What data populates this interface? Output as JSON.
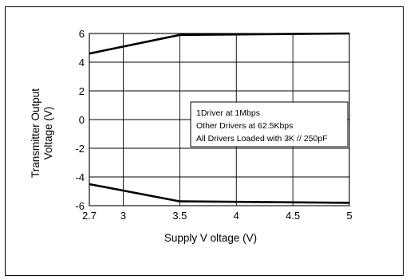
{
  "chart_data": {
    "type": "line",
    "xlabel": "Supply V oltage (V)",
    "ylabel_line1": "Transmitter Output",
    "ylabel_line2": "Voltage (V)",
    "xlim": [
      2.7,
      5.0
    ],
    "ylim": [
      -6,
      6
    ],
    "x_ticks": [
      "2.7",
      "3",
      "3.5",
      "4",
      "4.5",
      "5"
    ],
    "x_tick_values": [
      2.7,
      3.0,
      3.5,
      4.0,
      4.5,
      5.0
    ],
    "y_ticks": [
      "6",
      "4",
      "2",
      "0",
      "-2",
      "-4",
      "-6"
    ],
    "y_tick_values": [
      6,
      4,
      2,
      0,
      -2,
      -4,
      -6
    ],
    "grid": true,
    "legend_placement": "center-right",
    "annotation_lines": [
      "1Driver at 1Mbps",
      "Other Drivers at 62.5Kbps",
      "All Drivers Loaded with 3K // 250pF"
    ],
    "series": [
      {
        "x": [
          2.7,
          3.5,
          5.0
        ],
        "y": [
          4.6,
          5.9,
          6.0
        ]
      },
      {
        "x": [
          2.7,
          3.5,
          5.0
        ],
        "y": [
          -4.5,
          -5.7,
          -5.8
        ]
      }
    ],
    "line_color": "#000000"
  }
}
